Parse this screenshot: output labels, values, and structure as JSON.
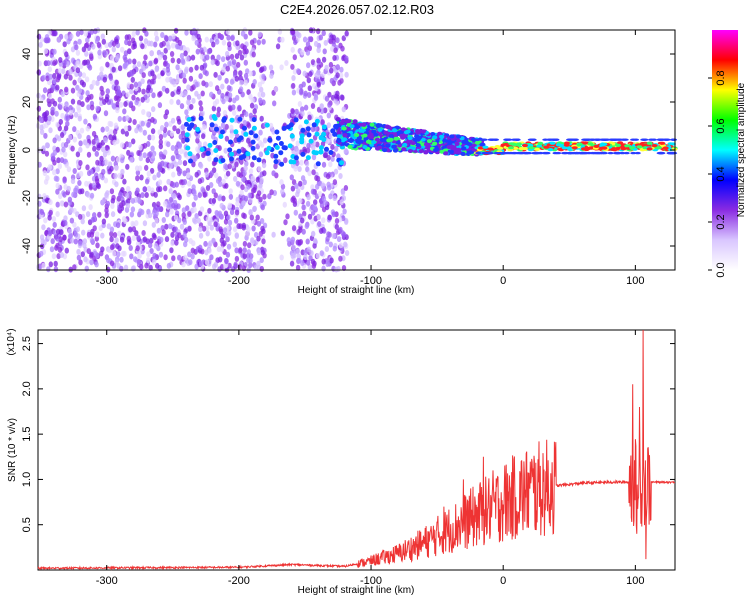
{
  "title": "C2E4.2026.057.02.12.R03",
  "chart_data": [
    {
      "type": "heatmap",
      "name": "spectrogram",
      "xlabel": "Height of straight line (km)",
      "ylabel": "Frequency (Hz)",
      "xlim": [
        -352,
        130
      ],
      "ylim": [
        -50,
        50
      ],
      "xticks": [
        -300,
        -200,
        -100,
        0,
        100
      ],
      "yticks": [
        -40,
        -20,
        0,
        20,
        40
      ],
      "colorbar": {
        "label": "Normalized spectral amplitude",
        "range": [
          0,
          1
        ],
        "ticks": [
          0.0,
          0.2,
          0.4,
          0.6,
          0.8
        ],
        "colors": [
          "#ffffff",
          "#d9c6ff",
          "#8a2be2",
          "#0000ff",
          "#00ffff",
          "#00ff00",
          "#ffff00",
          "#ff0000",
          "#ff00ff"
        ]
      },
      "description_regions": [
        {
          "x_range": [
            -352,
            -120
          ],
          "freq_range": [
            -50,
            50
          ],
          "amplitude": "low, scattered (purple)"
        },
        {
          "x_range": [
            -120,
            -20
          ],
          "freq_center": [
            8,
            0
          ],
          "amplitude": "medium (blue-green), narrowing band"
        },
        {
          "x_range": [
            -20,
            130
          ],
          "freq_center": [
            1,
            2
          ],
          "amplitude": "high (red), narrow band"
        }
      ]
    },
    {
      "type": "line",
      "name": "snr",
      "xlabel": "Height of straight line (km)",
      "ylabel": "SNR (10 * v/v)",
      "y_multiplier": "(x10⁴)",
      "xlim": [
        -352,
        130
      ],
      "ylim": [
        0,
        2.65
      ],
      "xticks": [
        -300,
        -200,
        -100,
        0,
        100
      ],
      "yticks": [
        0.5,
        1.0,
        1.5,
        2.0,
        2.5
      ],
      "color": "#ee3333",
      "envelope": [
        [
          -352,
          0.02
        ],
        [
          -200,
          0.03
        ],
        [
          -160,
          0.06
        ],
        [
          -120,
          0.04
        ],
        [
          -100,
          0.1
        ],
        [
          -80,
          0.18
        ],
        [
          -60,
          0.3
        ],
        [
          -40,
          0.45
        ],
        [
          -20,
          0.6
        ],
        [
          0,
          0.75
        ],
        [
          20,
          0.87
        ],
        [
          40,
          0.93
        ],
        [
          60,
          0.96
        ],
        [
          80,
          0.97
        ],
        [
          100,
          0.97
        ],
        [
          110,
          0.97
        ],
        [
          130,
          0.97
        ]
      ],
      "spikes": [
        [
          -30,
          1.0
        ],
        [
          -15,
          1.25
        ],
        [
          -25,
          0.75
        ],
        [
          -45,
          0.7
        ],
        [
          98,
          2.05
        ],
        [
          103,
          1.8
        ],
        [
          106,
          2.65
        ],
        [
          108,
          0.12
        ],
        [
          101,
          0.4
        ]
      ]
    }
  ]
}
